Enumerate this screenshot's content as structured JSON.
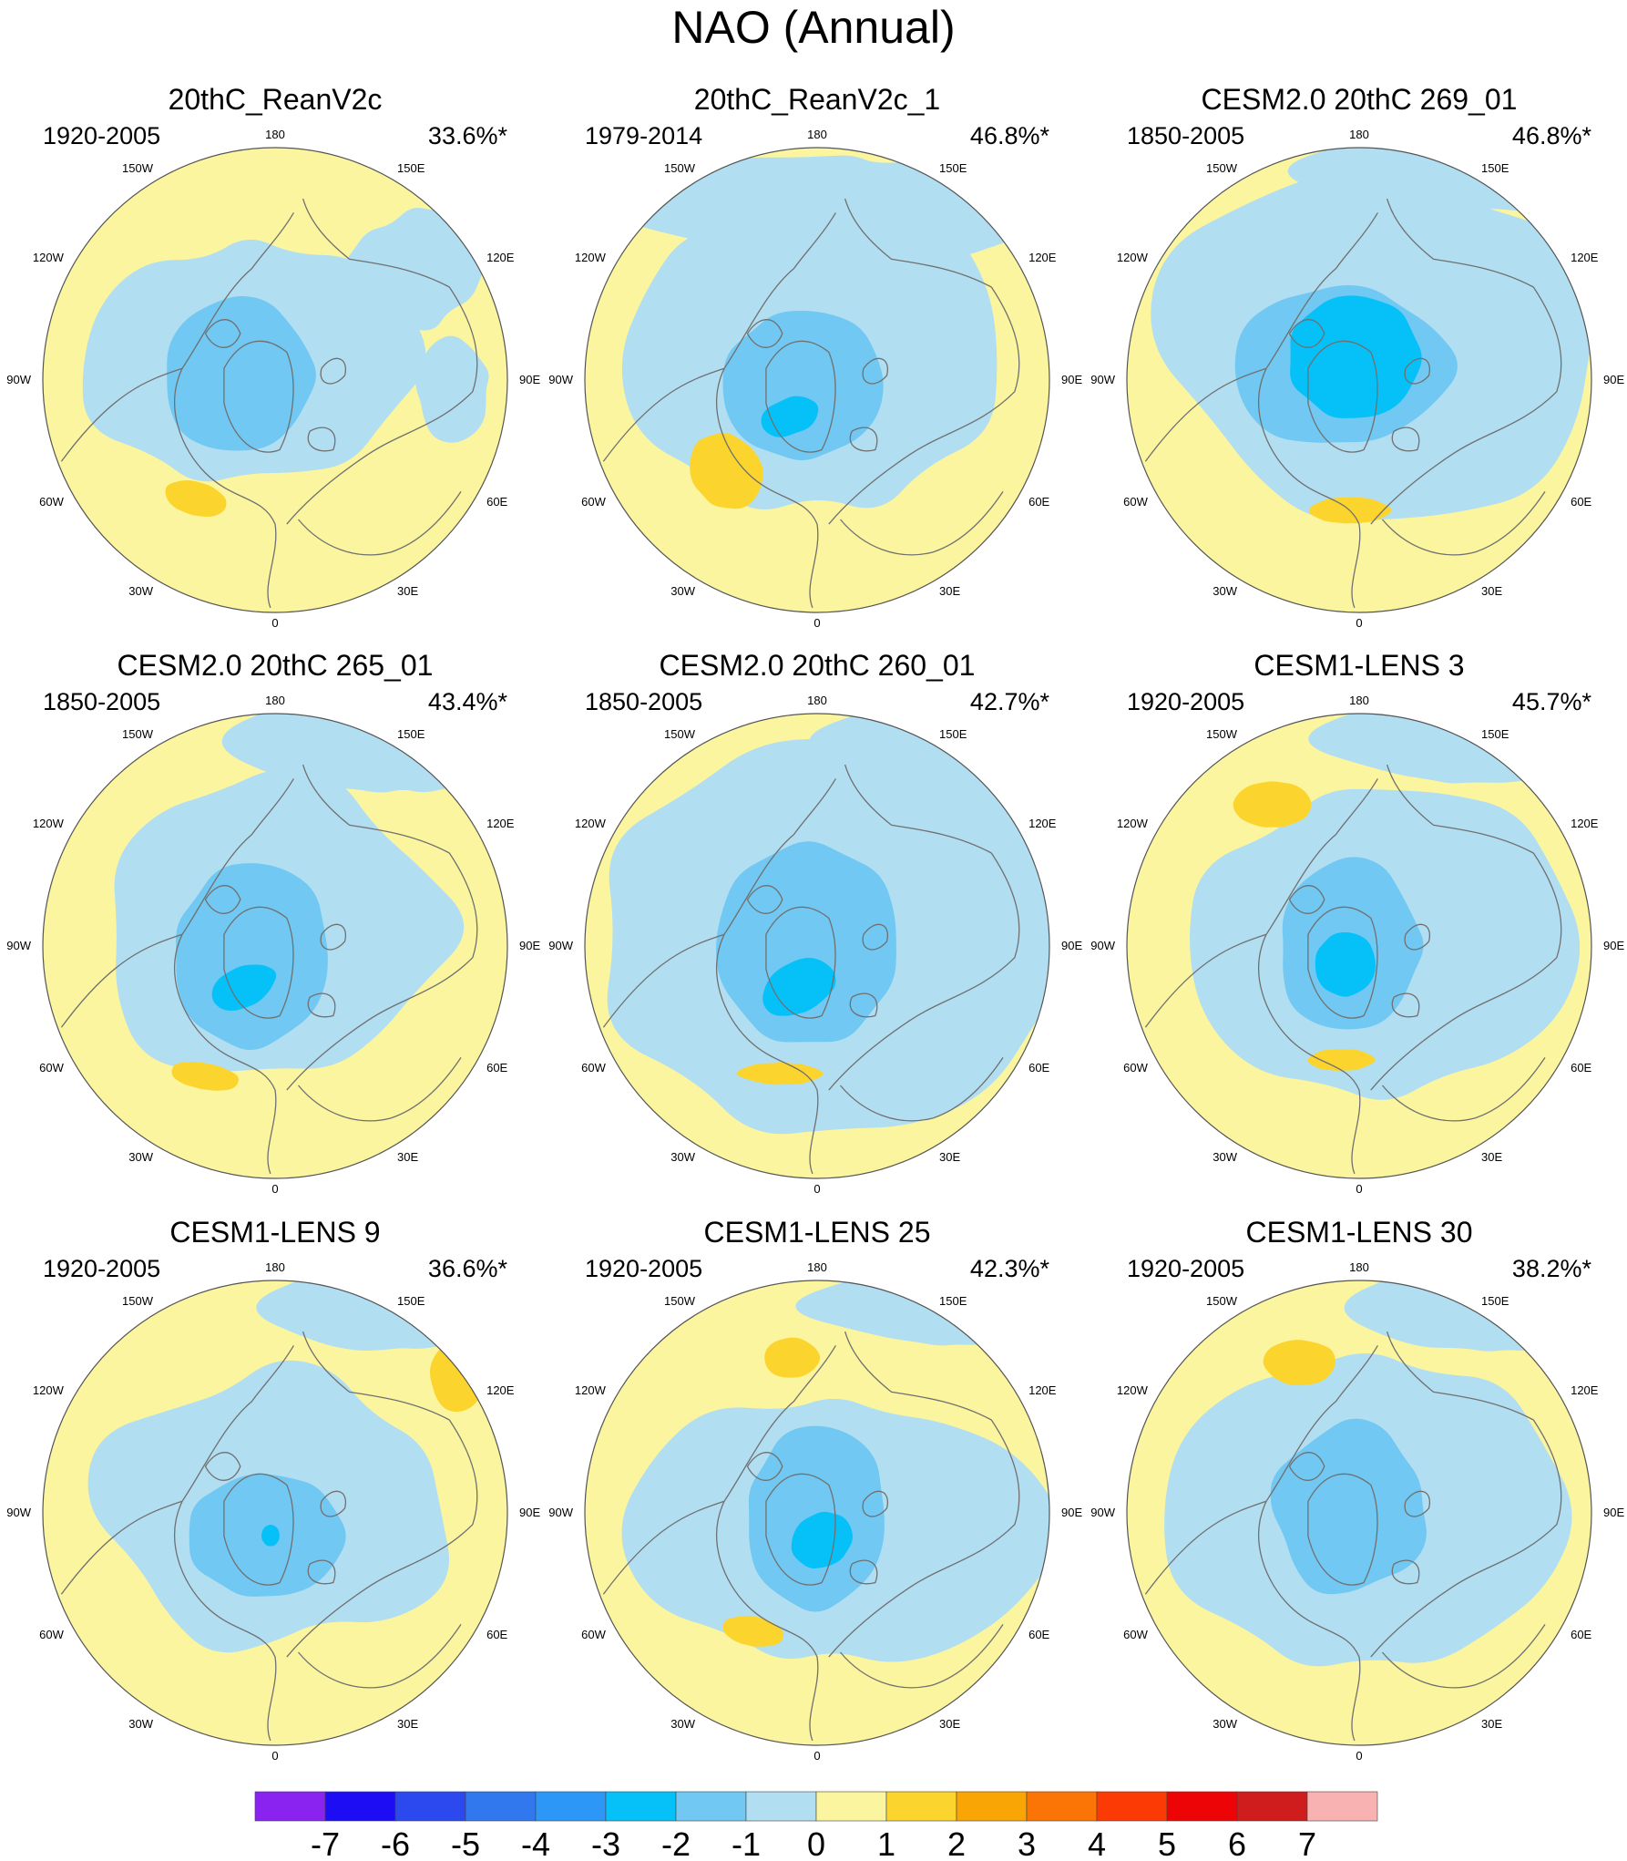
{
  "title": "NAO (Annual)",
  "colors": {
    "map_base": "#FBF5A0",
    "land_line": "#707070",
    "frame": "#555555"
  },
  "lon_labels": [
    "180",
    "150E",
    "120E",
    "90E",
    "60E",
    "30E",
    "0",
    "30W",
    "60W",
    "90W",
    "120W",
    "150W"
  ],
  "panels": [
    {
      "title": "20thC_ReanV2c",
      "period": "1920-2005",
      "pct": "33.6%*"
    },
    {
      "title": "20thC_ReanV2c_1",
      "period": "1979-2014",
      "pct": "46.8%*"
    },
    {
      "title": "CESM2.0 20thC 269_01",
      "period": "1850-2005",
      "pct": "46.8%*"
    },
    {
      "title": "CESM2.0 20thC 265_01",
      "period": "1850-2005",
      "pct": "43.4%*"
    },
    {
      "title": "CESM2.0 20thC 260_01",
      "period": "1850-2005",
      "pct": "42.7%*"
    },
    {
      "title": "CESM1-LENS 3",
      "period": "1920-2005",
      "pct": "45.7%*"
    },
    {
      "title": "CESM1-LENS 9",
      "period": "1920-2005",
      "pct": "36.6%*"
    },
    {
      "title": "CESM1-LENS 25",
      "period": "1920-2005",
      "pct": "42.3%*"
    },
    {
      "title": "CESM1-LENS 30",
      "period": "1920-2005",
      "pct": "38.2%*"
    }
  ],
  "colorbar": {
    "labels": [
      "-7",
      "-6",
      "-5",
      "-4",
      "-3",
      "-2",
      "-1",
      "0",
      "1",
      "2",
      "3",
      "4",
      "5",
      "6",
      "7"
    ],
    "colors": [
      "#8A22F0",
      "#1C0DF5",
      "#2C49F0",
      "#3178EE",
      "#2D97F8",
      "#06C0F8",
      "#71C8F2",
      "#B2DEF2",
      "#FBF5A0",
      "#FCD42E",
      "#FAA506",
      "#FB7406",
      "#FC3A06",
      "#EC0406",
      "#CF1C1C",
      "#F9B2B2"
    ]
  }
}
